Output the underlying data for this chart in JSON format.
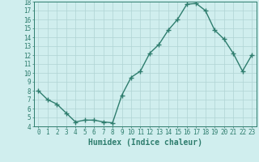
{
  "x": [
    0,
    1,
    2,
    3,
    4,
    5,
    6,
    7,
    8,
    9,
    10,
    11,
    12,
    13,
    14,
    15,
    16,
    17,
    18,
    19,
    20,
    21,
    22,
    23
  ],
  "y": [
    8.0,
    7.0,
    6.5,
    5.5,
    4.5,
    4.7,
    4.7,
    4.5,
    4.4,
    7.5,
    9.5,
    10.2,
    12.2,
    13.2,
    14.8,
    16.0,
    17.7,
    17.8,
    17.0,
    14.8,
    13.8,
    12.2,
    10.2,
    12.0
  ],
  "line_color": "#2e7d6e",
  "marker": "+",
  "bg_color": "#d0eeee",
  "grid_color": "#b0d4d4",
  "xlabel": "Humidex (Indice chaleur)",
  "ylim": [
    4,
    18
  ],
  "xlim": [
    -0.5,
    23.5
  ],
  "yticks": [
    4,
    5,
    6,
    7,
    8,
    9,
    10,
    11,
    12,
    13,
    14,
    15,
    16,
    17,
    18
  ],
  "xticks": [
    0,
    1,
    2,
    3,
    4,
    5,
    6,
    7,
    8,
    9,
    10,
    11,
    12,
    13,
    14,
    15,
    16,
    17,
    18,
    19,
    20,
    21,
    22,
    23
  ],
  "xtick_labels": [
    "0",
    "1",
    "2",
    "3",
    "4",
    "5",
    "6",
    "7",
    "8",
    "9",
    "10",
    "11",
    "12",
    "13",
    "14",
    "15",
    "16",
    "17",
    "18",
    "19",
    "20",
    "21",
    "22",
    "23"
  ],
  "tick_color": "#2e7d6e",
  "label_color": "#2e7d6e",
  "font_size": 5.5,
  "xlabel_fontsize": 7,
  "line_width": 1.0,
  "marker_size": 4
}
